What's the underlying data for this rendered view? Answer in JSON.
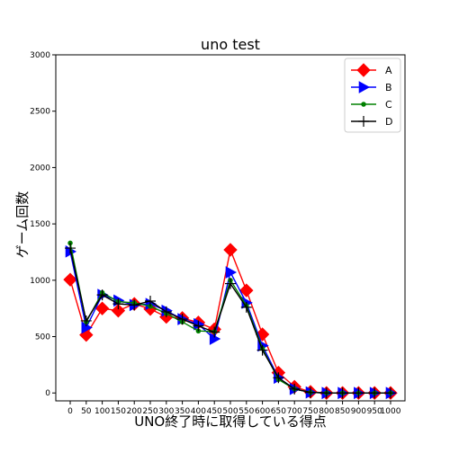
{
  "chart_data": {
    "type": "line",
    "title": "uno test",
    "xlabel": "UNO終了時に取得している得点",
    "ylabel": "ゲーム回数",
    "x": [
      0,
      50,
      100,
      150,
      200,
      250,
      300,
      350,
      400,
      450,
      500,
      550,
      600,
      650,
      700,
      750,
      800,
      850,
      900,
      950,
      1000
    ],
    "x_tick_labels": [
      "0",
      "50",
      "100",
      "150",
      "200",
      "250",
      "300",
      "350",
      "400",
      "450",
      "500",
      "550",
      "600",
      "650",
      "700",
      "750",
      "800",
      "850",
      "900",
      "950",
      "1000"
    ],
    "xlim": [
      -45,
      1045
    ],
    "ylim": [
      -70,
      3000
    ],
    "y_ticks": [
      0,
      500,
      1000,
      1500,
      2000,
      2500,
      3000
    ],
    "legend_position": "top-right",
    "series": [
      {
        "name": "A",
        "color": "#ff0000",
        "marker": "diamond",
        "values": [
          1005,
          515,
          750,
          730,
          790,
          745,
          675,
          665,
          625,
          565,
          1270,
          910,
          520,
          180,
          55,
          10,
          0,
          0,
          0,
          0,
          0
        ]
      },
      {
        "name": "B",
        "color": "#0000ff",
        "marker": "triangle-right",
        "values": [
          1255,
          580,
          870,
          820,
          780,
          790,
          730,
          655,
          610,
          480,
          1070,
          800,
          420,
          135,
          35,
          5,
          0,
          0,
          0,
          0,
          0
        ]
      },
      {
        "name": "C",
        "color": "#008000",
        "marker": "circle",
        "values": [
          1330,
          630,
          890,
          810,
          800,
          770,
          705,
          630,
          550,
          545,
          1000,
          775,
          395,
          120,
          35,
          5,
          0,
          0,
          0,
          0,
          0
        ]
      },
      {
        "name": "D",
        "color": "#000000",
        "marker": "plus",
        "values": [
          1285,
          640,
          870,
          790,
          780,
          815,
          720,
          655,
          595,
          540,
          970,
          760,
          380,
          135,
          35,
          5,
          0,
          0,
          0,
          0,
          0
        ]
      }
    ]
  }
}
